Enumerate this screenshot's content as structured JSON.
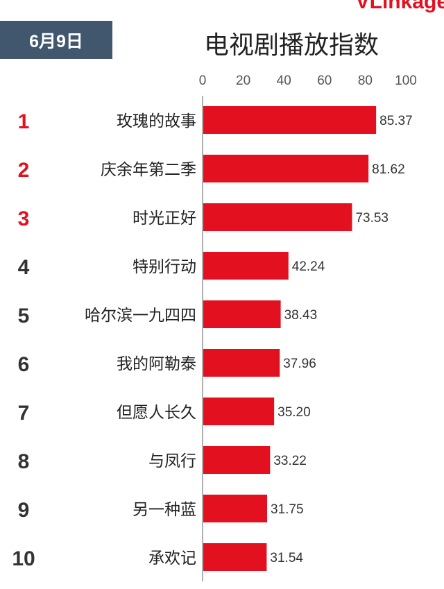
{
  "brand": "VLinkage",
  "date_label": "6月9日",
  "chart_data": {
    "type": "bar",
    "orientation": "horizontal",
    "title": "电视剧播放指数",
    "xlim": [
      0,
      100
    ],
    "ticks": [
      0,
      20,
      40,
      60,
      80,
      100
    ],
    "ranks": [
      "1",
      "2",
      "3",
      "4",
      "5",
      "6",
      "7",
      "8",
      "9",
      "10"
    ],
    "categories": [
      "玫瑰的故事",
      "庆余年第二季",
      "时光正好",
      "特别行动",
      "哈尔滨一九四四",
      "我的阿勒泰",
      "但愿人长久",
      "与凤行",
      "另一种蓝",
      "承欢记"
    ],
    "values": [
      85.37,
      81.62,
      73.53,
      42.24,
      38.43,
      37.96,
      35.2,
      33.22,
      31.75,
      31.54
    ],
    "value_labels": [
      "85.37",
      "81.62",
      "73.53",
      "42.24",
      "38.43",
      "37.96",
      "35.20",
      "33.22",
      "31.75",
      "31.54"
    ],
    "grid": false
  },
  "colors": {
    "bar": "#e3101f",
    "rank_top3": "#e3101f",
    "rank_other": "#333333",
    "axis": "#b0b0b0",
    "badge": "#41576e"
  }
}
